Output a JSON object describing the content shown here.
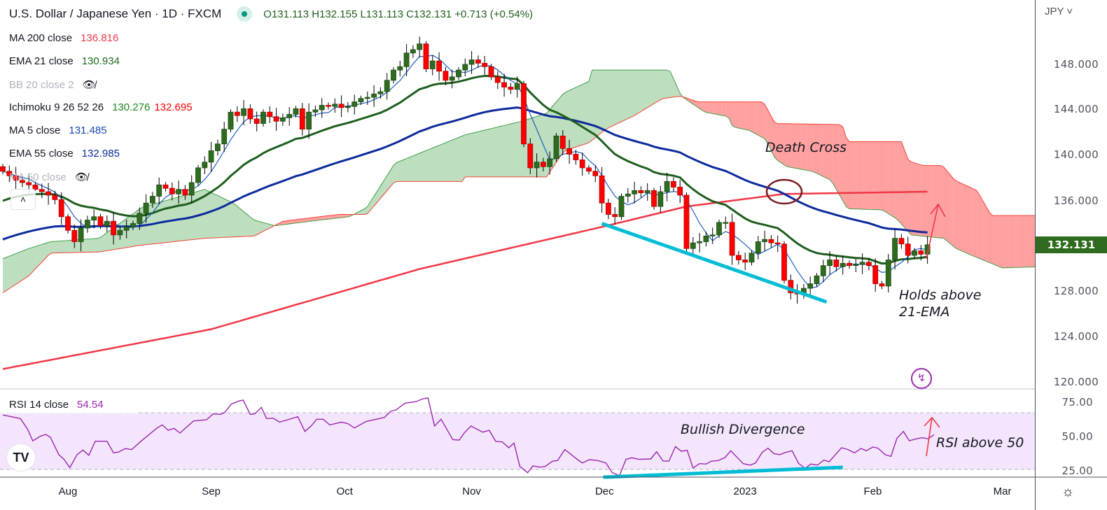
{
  "header": {
    "symbol_title": "U.S. Dollar / Japanese Yen · 1D · FXCM",
    "ohlc": "O131.113 H132.155 L131.113 C132.131 +0.713 (+0.54%)"
  },
  "legend": [
    {
      "label": "MA 200 close",
      "value": "136.816",
      "color": "#f23645"
    },
    {
      "label": "EMA 21 close",
      "value": "130.934",
      "color": "#1e6b1e"
    },
    {
      "label": "BB 20 close 2",
      "value": "",
      "hidden": true
    },
    {
      "label": "Ichimoku 9 26 52 26",
      "value": "130.276",
      "value2": "132.695",
      "color": "#1e8a1e",
      "color2": "#f00"
    },
    {
      "label": "MA 5 close",
      "value": "131.485",
      "color": "#1848b0"
    },
    {
      "label": "EMA 55 close",
      "value": "132.985",
      "color": "#0d2a9c"
    },
    {
      "label": "MA 50 close",
      "value": "",
      "hidden": true
    }
  ],
  "price_axis": {
    "currency": "JPY",
    "labels": [
      "148.000",
      "144.000",
      "140.000",
      "136.000",
      "128.000",
      "124.000",
      "120.000"
    ],
    "current_price": "132.131"
  },
  "rsi_axis": {
    "labels": [
      "75.00",
      "50.00",
      "25.00"
    ]
  },
  "rsi_legend": {
    "label": "RSI 14 close",
    "value": "54.54"
  },
  "annotations": {
    "death_cross": "Death Cross",
    "holds_line1": "Holds above",
    "holds_line2": "21-EMA",
    "bullish_divergence": "Bullish Divergence",
    "rsi_above": "RSI above 50"
  },
  "colors": {
    "up": "#2e6b1f",
    "down": "#ff0000",
    "ema21": "#1e5e1e",
    "ema55": "#0d2a9c",
    "ma5": "#1f5fbf",
    "ma200": "#f23645",
    "rsi": "#9c27b0",
    "trend": "#00bcd4"
  },
  "chart_data": {
    "type": "candlestick",
    "title": "U.S. Dollar / Japanese Yen · 1D · FXCM",
    "ylim": [
      118.5,
      152
    ],
    "rsi_ylim": [
      21,
      87
    ],
    "x_ticks": [
      {
        "label": "Aug",
        "bar": 10
      },
      {
        "label": "Sep",
        "bar": 32
      },
      {
        "label": "Oct",
        "bar": 52.5
      },
      {
        "label": "Nov",
        "bar": 72
      },
      {
        "label": "Dec",
        "bar": 92.4
      },
      {
        "label": "2023",
        "bar": 114
      },
      {
        "label": "Feb",
        "bar": 133.6
      },
      {
        "label": "Mar",
        "bar": 153.5
      }
    ],
    "closes": [
      138.6,
      138.2,
      137.8,
      137.6,
      137.4,
      137.0,
      136.8,
      136.5,
      136.1,
      134.6,
      133.4,
      132.4,
      133.6,
      134.3,
      134.6,
      133.8,
      134.2,
      133.0,
      133.4,
      133.7,
      134.0,
      134.9,
      135.8,
      136.4,
      137.4,
      137.1,
      136.6,
      137.0,
      136.5,
      137.6,
      138.9,
      139.4,
      140.4,
      141.0,
      142.3,
      143.8,
      143.5,
      144.1,
      143.2,
      142.8,
      143.8,
      143.4,
      143.0,
      143.3,
      143.6,
      144.1,
      142.3,
      143.8,
      144.0,
      144.4,
      144.3,
      144.5,
      144.2,
      144.3,
      144.7,
      145.0,
      145.1,
      145.4,
      145.6,
      146.6,
      147.5,
      147.8,
      149.0,
      149.3,
      149.8,
      147.6,
      148.3,
      147.4,
      146.6,
      146.9,
      147.5,
      148.0,
      148.4,
      148.1,
      147.8,
      146.9,
      146.4,
      146.0,
      145.8,
      146.3,
      141.0,
      138.9,
      139.4,
      139.0,
      139.7,
      141.7,
      140.6,
      140.1,
      139.6,
      138.9,
      138.6,
      138.2,
      135.8,
      134.8,
      134.6,
      136.4,
      136.6,
      136.9,
      136.7,
      136.9,
      135.5,
      136.8,
      137.7,
      137.2,
      136.5,
      131.8,
      132.3,
      132.4,
      132.9,
      133.0,
      134.1,
      134.1,
      131.2,
      130.8,
      130.6,
      131.4,
      132.4,
      132.6,
      132.3,
      132.2,
      129.0,
      127.9,
      127.8,
      128.3,
      128.7,
      129.4,
      130.3,
      130.8,
      130.2,
      130.5,
      130.3,
      130.4,
      130.6,
      130.3,
      128.7,
      128.5,
      130.8,
      132.7,
      132.2,
      131.2,
      131.6,
      131.3,
      132.131
    ],
    "ema21_seed": 136.0,
    "ema55_seed": 132.6,
    "ma200": [
      [
        0,
        121.2
      ],
      [
        32,
        124.7
      ],
      [
        64,
        130.0
      ],
      [
        92,
        133.7
      ],
      [
        105,
        135.5
      ],
      [
        120,
        136.6
      ],
      [
        142,
        136.8
      ]
    ],
    "ichimoku_span_a": [
      [
        0,
        130.9
      ],
      [
        4,
        131.8
      ],
      [
        7.3,
        132.4
      ],
      [
        14.8,
        132.7
      ],
      [
        21.3,
        135.4
      ],
      [
        31,
        137.0
      ],
      [
        35.4,
        135.8
      ],
      [
        38.6,
        134.3
      ],
      [
        41.8,
        133.8
      ],
      [
        47.2,
        134.2
      ],
      [
        53.2,
        134.6
      ],
      [
        55.9,
        135.4
      ],
      [
        60.2,
        139.3
      ],
      [
        64.5,
        140.3
      ],
      [
        71,
        141.8
      ],
      [
        79.7,
        143.0
      ],
      [
        83.5,
        143.7
      ],
      [
        86.2,
        145.5
      ],
      [
        90,
        146.5
      ],
      [
        90.5,
        147.5
      ],
      [
        102.4,
        147.5
      ],
      [
        104.2,
        145.2
      ],
      [
        107.8,
        143.8
      ],
      [
        111.4,
        143.4
      ],
      [
        112.1,
        142.5
      ],
      [
        114.6,
        142.2
      ],
      [
        117.2,
        141.4
      ],
      [
        118.6,
        139.7
      ],
      [
        120.4,
        139.0
      ],
      [
        124.3,
        138.6
      ],
      [
        127.2,
        137.8
      ],
      [
        129.7,
        135.3
      ],
      [
        135.1,
        135.2
      ],
      [
        137.3,
        134.4
      ],
      [
        139.5,
        133.0
      ],
      [
        144.5,
        132.7
      ],
      [
        146.4,
        131.8
      ],
      [
        149.2,
        131.1
      ],
      [
        153.5,
        130.1
      ],
      [
        159.5,
        130.2
      ]
    ],
    "ichimoku_span_b": [
      [
        0,
        127.9
      ],
      [
        4,
        129.4
      ],
      [
        7.3,
        131.4
      ],
      [
        14.8,
        131.5
      ],
      [
        21.3,
        132.1
      ],
      [
        31,
        132.7
      ],
      [
        38.6,
        132.9
      ],
      [
        43,
        134.2
      ],
      [
        51.6,
        134.8
      ],
      [
        55.9,
        134.8
      ],
      [
        60.2,
        137.7
      ],
      [
        70.5,
        137.7
      ],
      [
        71,
        138.1
      ],
      [
        83.5,
        138.1
      ],
      [
        86.2,
        140.4
      ],
      [
        90,
        141.1
      ],
      [
        92.6,
        142.3
      ],
      [
        97,
        143.5
      ],
      [
        101.3,
        145.0
      ],
      [
        104.2,
        145.2
      ],
      [
        106.7,
        144.7
      ],
      [
        116.8,
        144.7
      ],
      [
        118.6,
        142.8
      ],
      [
        128.9,
        142.7
      ],
      [
        129.7,
        141.2
      ],
      [
        138,
        141.2
      ],
      [
        139.1,
        139.5
      ],
      [
        141.3,
        139.1
      ],
      [
        144.3,
        139.1
      ],
      [
        146.2,
        137.8
      ],
      [
        149.6,
        136.9
      ],
      [
        151.8,
        134.7
      ],
      [
        159.5,
        134.7
      ]
    ],
    "rsi": [
      [
        0,
        68.4
      ],
      [
        2.7,
        65.9
      ],
      [
        3.8,
        58.5
      ],
      [
        4.6,
        50.2
      ],
      [
        5.8,
        53.5
      ],
      [
        6.6,
        54.7
      ],
      [
        7.3,
        52.7
      ],
      [
        8.6,
        40.4
      ],
      [
        9.4,
        37.1
      ],
      [
        10.3,
        31.3
      ],
      [
        11.4,
        40.4
      ],
      [
        12.3,
        43.7
      ],
      [
        13.2,
        40.0
      ],
      [
        14.2,
        49.9
      ],
      [
        16,
        49.9
      ],
      [
        17,
        41.7
      ],
      [
        17.8,
        42.3
      ],
      [
        18.8,
        44.7
      ],
      [
        19.8,
        44.0
      ],
      [
        21.1,
        49.4
      ],
      [
        23.7,
        59.3
      ],
      [
        24.5,
        61.4
      ],
      [
        25.4,
        57.6
      ],
      [
        26.3,
        59.0
      ],
      [
        27.2,
        55.7
      ],
      [
        29.3,
        64.2
      ],
      [
        31.3,
        65.1
      ],
      [
        32.3,
        69.2
      ],
      [
        33.4,
        68.8
      ],
      [
        34.1,
        70.3
      ],
      [
        35.1,
        76.1
      ],
      [
        36.2,
        78.2
      ],
      [
        36.9,
        79.0
      ],
      [
        38,
        68.8
      ],
      [
        38.7,
        69.2
      ],
      [
        39.7,
        73.8
      ],
      [
        40.5,
        65.9
      ],
      [
        41.5,
        66.2
      ],
      [
        42.5,
        63.4
      ],
      [
        45.3,
        67.2
      ],
      [
        46.4,
        56.8
      ],
      [
        47.4,
        60.9
      ],
      [
        48.2,
        65.4
      ],
      [
        49.2,
        65.4
      ],
      [
        50.2,
        61.4
      ],
      [
        52,
        63.4
      ],
      [
        53,
        62.3
      ],
      [
        54,
        59.3
      ],
      [
        55.8,
        63.9
      ],
      [
        58.6,
        66.7
      ],
      [
        59.6,
        71.2
      ],
      [
        60.4,
        72.0
      ],
      [
        61.7,
        76.6
      ],
      [
        63.5,
        77.9
      ],
      [
        64.5,
        79.9
      ],
      [
        65.3,
        80.4
      ],
      [
        66.3,
        60.6
      ],
      [
        67.3,
        65.4
      ],
      [
        69.1,
        51.1
      ],
      [
        70.1,
        50.7
      ],
      [
        70.9,
        56.0
      ],
      [
        71.9,
        60.6
      ],
      [
        73.7,
        56.3
      ],
      [
        74.7,
        57.6
      ],
      [
        75.7,
        49.8
      ],
      [
        76.7,
        49.4
      ],
      [
        77.7,
        45.3
      ],
      [
        78.5,
        48.6
      ],
      [
        79.4,
        32.1
      ],
      [
        80.6,
        27.7
      ],
      [
        81.4,
        32.5
      ],
      [
        82.5,
        31.6
      ],
      [
        83.3,
        32.1
      ],
      [
        84.4,
        35.8
      ],
      [
        85.2,
        36.3
      ],
      [
        86.3,
        44.0
      ],
      [
        87.1,
        41.2
      ],
      [
        88.2,
        37.1
      ],
      [
        89,
        34.6
      ],
      [
        90.1,
        36.9
      ],
      [
        91.3,
        36.3
      ],
      [
        92.6,
        34.6
      ],
      [
        93.6,
        27.7
      ],
      [
        94.7,
        25.6
      ],
      [
        95.7,
        37.1
      ],
      [
        96.6,
        38.2
      ],
      [
        97.7,
        37.1
      ],
      [
        99.5,
        37.4
      ],
      [
        100.4,
        42.5
      ],
      [
        101.4,
        35.9
      ],
      [
        102.3,
        35.9
      ],
      [
        103.3,
        46.1
      ],
      [
        104.2,
        42.8
      ],
      [
        105.1,
        43.5
      ],
      [
        106,
        31.0
      ],
      [
        107,
        34.1
      ],
      [
        108,
        33.8
      ],
      [
        108.8,
        35.8
      ],
      [
        109.9,
        36.3
      ],
      [
        110.9,
        38.4
      ],
      [
        111.8,
        43.2
      ],
      [
        112.7,
        38.8
      ],
      [
        113.7,
        34.1
      ],
      [
        114.8,
        33.0
      ],
      [
        115.6,
        34.6
      ],
      [
        116.6,
        42.0
      ],
      [
        117.5,
        45.0
      ],
      [
        118.4,
        41.2
      ],
      [
        119.3,
        40.4
      ],
      [
        120.2,
        42.0
      ],
      [
        121.2,
        43.2
      ],
      [
        122.2,
        34.3
      ],
      [
        123.2,
        30.8
      ],
      [
        124.1,
        33.8
      ],
      [
        125.1,
        33.0
      ],
      [
        126.1,
        36.6
      ],
      [
        126.9,
        35.4
      ],
      [
        128.8,
        45.3
      ],
      [
        129.8,
        44.0
      ],
      [
        130.8,
        41.7
      ],
      [
        131.8,
        44.8
      ],
      [
        132.6,
        43.2
      ],
      [
        133.6,
        45.8
      ],
      [
        134.4,
        45.0
      ],
      [
        135.5,
        40.4
      ],
      [
        136.4,
        39.2
      ],
      [
        137.3,
        51.9
      ],
      [
        138.3,
        56.8
      ],
      [
        139.2,
        50.2
      ],
      [
        140.1,
        51.4
      ],
      [
        141.2,
        52.4
      ],
      [
        142.1,
        51.6
      ],
      [
        143,
        54.54
      ]
    ],
    "rsi_bands": [
      70,
      30
    ],
    "trendlines": {
      "price_support": [
        [
          92,
          134.0
        ],
        [
          126.5,
          127.1
        ]
      ],
      "rsi_support": [
        [
          92.2,
          24.5
        ],
        [
          129,
          31.5
        ]
      ]
    }
  }
}
